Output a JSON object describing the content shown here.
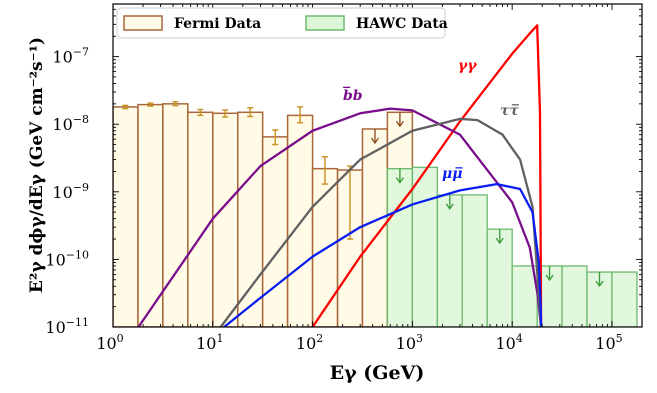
{
  "chart_data": {
    "type": "bar",
    "xlabel": "Eγ (GeV)",
    "ylabel": "E²γ dϕγ/dEγ (GeV cm⁻²s⁻¹)",
    "xscale": "log",
    "yscale": "log",
    "xlim": [
      1,
      200000
    ],
    "ylim": [
      1e-11,
      6e-07
    ],
    "x_ticks": [
      "10^0",
      "10^1",
      "10^2",
      "10^3",
      "10^4",
      "10^5"
    ],
    "y_ticks": [
      "10^-11",
      "10^-10",
      "10^-9",
      "10^-8",
      "10^-7"
    ],
    "legend_position": "top-left",
    "legend": [
      "Fermi Data",
      "HAWC Data"
    ],
    "colors": {
      "fermi_edge": "#a9673a",
      "fermi_fill": "#fffbe6",
      "fermi_err": "#c8901d",
      "hawc_edge": "#6fb86f",
      "hawc_fill": "#dcf7d8",
      "hawc_arrow": "#3a9a3a",
      "gg": "#ff0000",
      "bb": "#7a0d8c",
      "tt": "#606060",
      "mm": "#0a1eef"
    },
    "fermi_bins": [
      {
        "lo": 1.0,
        "hi": 1.78,
        "y": 1.8e-08
      },
      {
        "lo": 1.78,
        "hi": 3.16,
        "y": 1.95e-08
      },
      {
        "lo": 3.16,
        "hi": 5.62,
        "y": 2e-08
      },
      {
        "lo": 5.62,
        "hi": 10.0,
        "y": 1.5e-08
      },
      {
        "lo": 10.0,
        "hi": 17.8,
        "y": 1.45e-08
      },
      {
        "lo": 17.8,
        "hi": 31.6,
        "y": 1.5e-08
      },
      {
        "lo": 31.6,
        "hi": 56.2,
        "y": 6.5e-09
      },
      {
        "lo": 56.2,
        "hi": 100,
        "y": 1.35e-08
      },
      {
        "lo": 100,
        "hi": 178,
        "y": 2.2e-09
      },
      {
        "lo": 178,
        "hi": 316,
        "y": 2.1e-09
      },
      {
        "lo": 316,
        "hi": 562,
        "y": 8.5e-09
      },
      {
        "lo": 562,
        "hi": 1000,
        "y": 1.5e-08
      }
    ],
    "fermi_errors": [
      {
        "x": 1.33,
        "y": 1.8e-08,
        "lo": 1.7e-08,
        "hi": 1.9e-08
      },
      {
        "x": 2.37,
        "y": 1.95e-08,
        "lo": 1.85e-08,
        "hi": 2.05e-08
      },
      {
        "x": 4.22,
        "y": 2e-08,
        "lo": 1.88e-08,
        "hi": 2.15e-08
      },
      {
        "x": 7.5,
        "y": 1.5e-08,
        "lo": 1.35e-08,
        "hi": 1.65e-08
      },
      {
        "x": 13.3,
        "y": 1.45e-08,
        "lo": 1.28e-08,
        "hi": 1.62e-08
      },
      {
        "x": 23.7,
        "y": 1.5e-08,
        "lo": 1.3e-08,
        "hi": 1.75e-08
      },
      {
        "x": 42.2,
        "y": 6.5e-09,
        "lo": 5e-09,
        "hi": 8.2e-09
      },
      {
        "x": 75,
        "y": 1.35e-08,
        "lo": 1.05e-08,
        "hi": 1.8e-08
      },
      {
        "x": 133,
        "y": 2.2e-09,
        "lo": 1.3e-09,
        "hi": 3.3e-09
      },
      {
        "x": 237,
        "y": 2.1e-09,
        "lo": 2e-10,
        "hi": 2.4e-09
      }
    ],
    "fermi_upper_limits": [
      {
        "x": 422,
        "y": 8.5e-09
      },
      {
        "x": 750,
        "y": 1.5e-08
      }
    ],
    "hawc_bins": [
      {
        "lo": 562,
        "hi": 1000,
        "y": 2.2e-09
      },
      {
        "lo": 1000,
        "hi": 1780,
        "y": 2.3e-09
      },
      {
        "lo": 1780,
        "hi": 3160,
        "y": 9e-10
      },
      {
        "lo": 3160,
        "hi": 5620,
        "y": 9e-10
      },
      {
        "lo": 5620,
        "hi": 10000,
        "y": 2.8e-10
      },
      {
        "lo": 10000,
        "hi": 17800,
        "y": 8e-11
      },
      {
        "lo": 17800,
        "hi": 31600,
        "y": 8e-11
      },
      {
        "lo": 31600,
        "hi": 56200,
        "y": 8e-11
      },
      {
        "lo": 56200,
        "hi": 100000,
        "y": 6.5e-11
      },
      {
        "lo": 100000,
        "hi": 178000,
        "y": 6.5e-11
      }
    ],
    "hawc_upper_limits": [
      {
        "x": 750,
        "y": 2.2e-09
      },
      {
        "x": 2370,
        "y": 9e-10
      },
      {
        "x": 7500,
        "y": 2.8e-10
      },
      {
        "x": 23700,
        "y": 8e-11
      },
      {
        "x": 75000,
        "y": 6.5e-11
      }
    ],
    "series": [
      {
        "name": "γγ",
        "color": "#ff0000",
        "x": [
          100,
          300,
          1000,
          3000,
          10000,
          15000,
          17800,
          19000,
          19500
        ],
        "y": [
          1e-11,
          1.1e-10,
          1.1e-09,
          1.1e-08,
          1.1e-07,
          2.2e-07,
          2.9e-07,
          1.5e-08,
          1e-11
        ]
      },
      {
        "name": "b̅b",
        "color": "#7a0d8c",
        "x": [
          1.8,
          3,
          10,
          30,
          100,
          300,
          600,
          1000,
          3000,
          10000,
          15000,
          18000,
          19500
        ],
        "y": [
          1e-11,
          3e-11,
          4e-10,
          2.4e-09,
          8e-09,
          1.45e-08,
          1.7e-08,
          1.6e-08,
          7e-09,
          7e-10,
          1.5e-10,
          3e-11,
          1e-11
        ]
      },
      {
        "name": "ττ̅",
        "color": "#606060",
        "x": [
          12,
          30,
          100,
          300,
          1000,
          3000,
          4500,
          8000,
          12000,
          16000,
          18500,
          19500
        ],
        "y": [
          1e-11,
          6e-11,
          6e-10,
          3e-09,
          8e-09,
          1.2e-08,
          1.15e-08,
          7e-09,
          3e-09,
          6e-10,
          3e-11,
          1e-11
        ]
      },
      {
        "name": "μμ̅",
        "color": "#0a1eef",
        "x": [
          13,
          30,
          100,
          300,
          1000,
          3000,
          7000,
          12000,
          16000,
          18500,
          19300,
          19500
        ],
        "y": [
          1e-11,
          2.7e-11,
          1.1e-10,
          3e-10,
          6.5e-10,
          1.05e-09,
          1.3e-09,
          1.1e-09,
          5e-10,
          9e-11,
          2e-11,
          1e-11
        ]
      }
    ]
  }
}
